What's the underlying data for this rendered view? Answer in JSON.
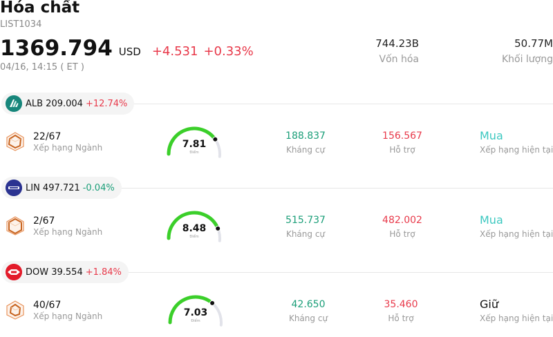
{
  "header": {
    "title": "Hóa chất",
    "code": "LIST1034",
    "price": "1369.794",
    "currency": "USD",
    "change": "+4.531",
    "change_pct": "+0.33%",
    "time": "04/16, 14:15  ( ET )"
  },
  "stats": {
    "market_cap": {
      "value": "744.23B",
      "label": "Vốn hóa"
    },
    "volume": {
      "value": "50.77M",
      "label": "Khối lượng"
    }
  },
  "stocks": [
    {
      "symbol": "ALB 209.004",
      "pct": "+12.74%",
      "pct_color": "#e8394a",
      "logo_icon": "albemarle-logo-icon",
      "rank": "22/67",
      "rank_label": "Xếp hạng Ngành",
      "score": "7.81",
      "score_fraction": 0.781,
      "score_label": "Điểm",
      "resistance": "188.837",
      "resistance_label": "Kháng cự",
      "support": "156.567",
      "support_label": "Hỗ trợ",
      "verdict": "Mua",
      "verdict_color": "#3cc8c0",
      "verdict_label": "Xếp hạng hiện tại"
    },
    {
      "symbol": "LIN 497.721",
      "pct": "-0.04%",
      "pct_color": "#1a9e78",
      "logo_icon": "linde-logo-icon",
      "rank": "2/67",
      "rank_label": "Xếp hạng Ngành",
      "score": "8.48",
      "score_fraction": 0.848,
      "score_label": "Điểm",
      "resistance": "515.737",
      "resistance_label": "Kháng cự",
      "support": "482.002",
      "support_label": "Hỗ trợ",
      "verdict": "Mua",
      "verdict_color": "#3cc8c0",
      "verdict_label": "Xếp hạng hiện tại"
    },
    {
      "symbol": "DOW 39.554",
      "pct": "+1.84%",
      "pct_color": "#e8394a",
      "logo_icon": "dow-logo-icon",
      "rank": "40/67",
      "rank_label": "Xếp hạng Ngành",
      "score": "7.03",
      "score_fraction": 0.703,
      "score_label": "Điểm",
      "resistance": "42.650",
      "resistance_label": "Kháng cự",
      "support": "35.460",
      "support_label": "Hỗ trợ",
      "verdict": "Giữ",
      "verdict_color": "#111111",
      "verdict_label": "Xếp hạng hiện tại"
    }
  ],
  "colors": {
    "up": "#e8394a",
    "down": "#1a9e78",
    "gauge_fill": "#3bcf2a",
    "gauge_track": "#e2e3ea"
  }
}
